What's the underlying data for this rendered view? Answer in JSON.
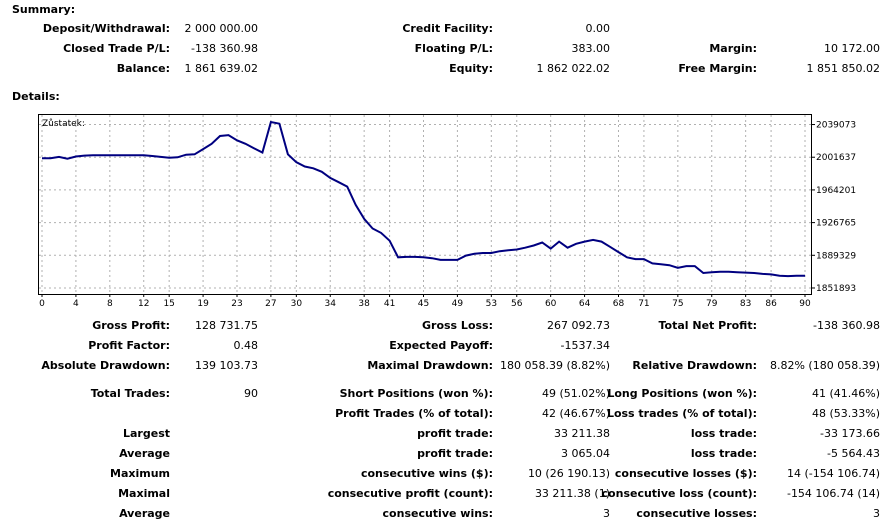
{
  "summary": {
    "title": "Summary:",
    "deposit_label": "Deposit/Withdrawal:",
    "deposit_value": "2 000 000.00",
    "credit_label": "Credit Facility:",
    "credit_value": "0.00",
    "closed_label": "Closed Trade P/L:",
    "closed_value": "-138 360.98",
    "floating_label": "Floating P/L:",
    "floating_value": "383.00",
    "margin_label": "Margin:",
    "margin_value": "10 172.00",
    "balance_label": "Balance:",
    "balance_value": "1 861 639.02",
    "equity_label": "Equity:",
    "equity_value": "1 862 022.02",
    "free_margin_label": "Free Margin:",
    "free_margin_value": "1 851 850.02"
  },
  "details": {
    "title": "Details:"
  },
  "chart_data": {
    "type": "line",
    "title": "Zůstatek:",
    "x_ticks": [
      "0",
      "4",
      "8",
      "12",
      "15",
      "19",
      "23",
      "27",
      "30",
      "34",
      "38",
      "41",
      "45",
      "49",
      "53",
      "56",
      "60",
      "64",
      "68",
      "71",
      "75",
      "79",
      "83",
      "86",
      "90"
    ],
    "y_ticks": [
      "2039073",
      "2001637",
      "1964201",
      "1926765",
      "1889329",
      "1851893"
    ],
    "xlim": [
      0,
      90
    ],
    "ylim": [
      1845000,
      2050000
    ],
    "line_color": "#000080",
    "grid": true,
    "x": [
      0,
      1,
      2,
      3,
      4,
      5,
      6,
      7,
      8,
      9,
      10,
      11,
      12,
      13,
      14,
      15,
      16,
      17,
      18,
      19,
      20,
      21,
      22,
      23,
      24,
      25,
      26,
      27,
      28,
      29,
      30,
      31,
      32,
      33,
      34,
      35,
      36,
      37,
      38,
      39,
      40,
      41,
      42,
      43,
      44,
      45,
      46,
      47,
      48,
      49,
      50,
      51,
      52,
      53,
      54,
      55,
      56,
      57,
      58,
      59,
      60,
      61,
      62,
      63,
      64,
      65,
      66,
      67,
      68,
      69,
      70,
      71,
      72,
      73,
      74,
      75,
      76,
      77,
      78,
      79,
      80,
      81,
      82,
      83,
      84,
      85,
      86,
      87,
      88,
      89,
      90
    ],
    "values": [
      2000500,
      2000500,
      2002000,
      2000000,
      2002500,
      2003500,
      2004000,
      2004000,
      2004000,
      2004000,
      2004000,
      2004000,
      2004000,
      2003000,
      2002000,
      2001000,
      2001500,
      2004500,
      2005000,
      2011000,
      2017000,
      2026000,
      2027000,
      2021000,
      2017000,
      2012000,
      2007000,
      2042000,
      2040000,
      2005000,
      1996000,
      1991000,
      1989000,
      1985000,
      1978000,
      1973000,
      1968000,
      1947000,
      1931000,
      1920000,
      1915000,
      1906000,
      1887000,
      1887500,
      1887500,
      1887000,
      1886000,
      1884000,
      1884000,
      1884000,
      1889000,
      1891000,
      1892000,
      1892000,
      1894000,
      1895000,
      1896000,
      1898000,
      1900500,
      1904000,
      1897000,
      1905000,
      1898000,
      1902500,
      1905000,
      1907000,
      1905000,
      1899000,
      1893000,
      1887000,
      1885000,
      1885000,
      1880000,
      1879000,
      1878000,
      1875000,
      1877000,
      1877000,
      1869000,
      1870000,
      1870500,
      1870500,
      1870000,
      1869500,
      1869000,
      1868000,
      1867500,
      1866000,
      1865500,
      1866000,
      1866000
    ]
  },
  "stats": {
    "gross_profit_label": "Gross Profit:",
    "gross_profit_value": "128 731.75",
    "gross_loss_label": "Gross Loss:",
    "gross_loss_value": "267 092.73",
    "total_net_label": "Total Net Profit:",
    "total_net_value": "-138 360.98",
    "profit_factor_label": "Profit Factor:",
    "profit_factor_value": "0.48",
    "expected_payoff_label": "Expected Payoff:",
    "expected_payoff_value": "-1537.34",
    "abs_dd_label": "Absolute Drawdown:",
    "abs_dd_value": "139 103.73",
    "max_dd_label": "Maximal Drawdown:",
    "max_dd_value": "180 058.39 (8.82%)",
    "rel_dd_label": "Relative Drawdown:",
    "rel_dd_value": "8.82% (180 058.39)",
    "total_trades_label": "Total Trades:",
    "total_trades_value": "90",
    "short_label": "Short Positions (won %):",
    "short_value": "49 (51.02%)",
    "long_label": "Long Positions (won %):",
    "long_value": "41 (41.46%)",
    "profit_trades_label": "Profit Trades (% of total):",
    "profit_trades_value": "42 (46.67%)",
    "loss_trades_label": "Loss trades (% of total):",
    "loss_trades_value": "48 (53.33%)",
    "largest_label": "Largest",
    "largest_profit_label": "profit trade:",
    "largest_profit_value": "33 211.38",
    "largest_loss_label": "loss trade:",
    "largest_loss_value": "-33 173.66",
    "average_label": "Average",
    "average_profit_label": "profit trade:",
    "average_profit_value": "3 065.04",
    "average_loss_label": "loss trade:",
    "average_loss_value": "-5 564.43",
    "maximum_label": "Maximum",
    "max_wins_label": "consecutive wins ($):",
    "max_wins_value": "10 (26 190.13)",
    "max_losses_label": "consecutive losses ($):",
    "max_losses_value": "14 (-154 106.74)",
    "maximal_label": "Maximal",
    "maximal_profit_label": "consecutive profit (count):",
    "maximal_profit_value": "33 211.38 (1)",
    "maximal_loss_label": "consecutive loss (count):",
    "maximal_loss_value": "-154 106.74 (14)",
    "average2_label": "Average",
    "avg_cons_wins_label": "consecutive wins:",
    "avg_cons_wins_value": "3",
    "avg_cons_losses_label": "consecutive losses:",
    "avg_cons_losses_value": "3"
  }
}
